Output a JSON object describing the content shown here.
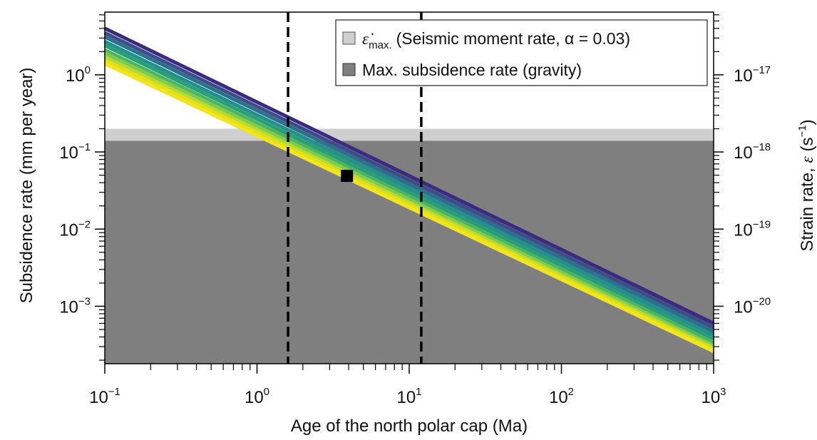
{
  "chart_data": {
    "type": "line",
    "xlabel": "Age of the north polar cap (Ma)",
    "ylabel": "Subsidence rate (mm per year)",
    "y2label": "Strain rate, ε (s−1)",
    "xscale": "log",
    "yscale": "log",
    "xlim": [
      0.1,
      1000
    ],
    "ylim": [
      0.00018,
      6.5
    ],
    "y2lim": [
      1.8e-21,
      6.5e-17
    ],
    "x_ticks": [
      {
        "value": 0.1,
        "base": "10",
        "exp": "−1"
      },
      {
        "value": 1,
        "base": "10",
        "exp": "0"
      },
      {
        "value": 10,
        "base": "10",
        "exp": "1"
      },
      {
        "value": 100,
        "base": "10",
        "exp": "2"
      },
      {
        "value": 1000,
        "base": "10",
        "exp": "3"
      }
    ],
    "y_ticks": [
      {
        "value": 1,
        "base": "10",
        "exp": "0"
      },
      {
        "value": 0.1,
        "base": "10",
        "exp": "−1"
      },
      {
        "value": 0.01,
        "base": "10",
        "exp": "−2"
      },
      {
        "value": 0.001,
        "base": "10",
        "exp": "−3"
      }
    ],
    "y2_ticks": [
      {
        "value": 1e-17,
        "base": "10",
        "exp": "−17"
      },
      {
        "value": 1e-18,
        "base": "10",
        "exp": "−18"
      },
      {
        "value": 1e-19,
        "base": "10",
        "exp": "−19"
      },
      {
        "value": 1e-20,
        "base": "10",
        "exp": "−20"
      }
    ],
    "series_colors": [
      "#3b2a7e",
      "#3d4d8a",
      "#2f6f8e",
      "#21918c",
      "#2a9e78",
      "#4bb566",
      "#7ccd4f",
      "#b5d83a",
      "#dde318",
      "#f2e51a"
    ],
    "series": [
      {
        "x": [
          0.1,
          1000
        ],
        "y": [
          4.0,
          0.0006
        ]
      },
      {
        "x": [
          0.1,
          1000
        ],
        "y": [
          3.5,
          0.00053
        ]
      },
      {
        "x": [
          0.1,
          1000
        ],
        "y": [
          3.1,
          0.00047
        ]
      },
      {
        "x": [
          0.1,
          1000
        ],
        "y": [
          2.7,
          0.00042
        ]
      },
      {
        "x": [
          0.1,
          1000
        ],
        "y": [
          2.4,
          0.00037
        ]
      },
      {
        "x": [
          0.1,
          1000
        ],
        "y": [
          2.1,
          0.00034
        ]
      },
      {
        "x": [
          0.1,
          1000
        ],
        "y": [
          1.9,
          0.00031
        ]
      },
      {
        "x": [
          0.1,
          1000
        ],
        "y": [
          1.7,
          0.00029
        ]
      },
      {
        "x": [
          0.1,
          1000
        ],
        "y": [
          1.55,
          0.000275
        ]
      },
      {
        "x": [
          0.1,
          1000
        ],
        "y": [
          1.4,
          0.00026
        ]
      }
    ],
    "bands": [
      {
        "name": "Max. subsidence rate (gravity)",
        "y_min": 0.00018,
        "y_max": 0.14,
        "color": "#7f7f7f"
      },
      {
        "name": "ε̇max. (Seismic moment rate, α = 0.03)",
        "y_min": 0.14,
        "y_max": 0.2,
        "color": "#cfcfcf"
      }
    ],
    "vlines": [
      {
        "x": 1.6,
        "style": "dashed",
        "color": "#000000"
      },
      {
        "x": 12,
        "style": "dashed",
        "color": "#000000"
      }
    ],
    "points": [
      {
        "x": 3.9,
        "y": 0.049,
        "marker": "square",
        "color": "#000000"
      }
    ],
    "legend": {
      "placement": "top-right",
      "entries": [
        {
          "symbol_main": "ε̇",
          "symbol_sub": "max.",
          "label": "(Seismic moment rate, α = 0.03)",
          "color": "#cfcfcf"
        },
        {
          "label": "Max. subsidence rate (gravity)",
          "color": "#7f7f7f"
        }
      ]
    },
    "grid": false
  }
}
